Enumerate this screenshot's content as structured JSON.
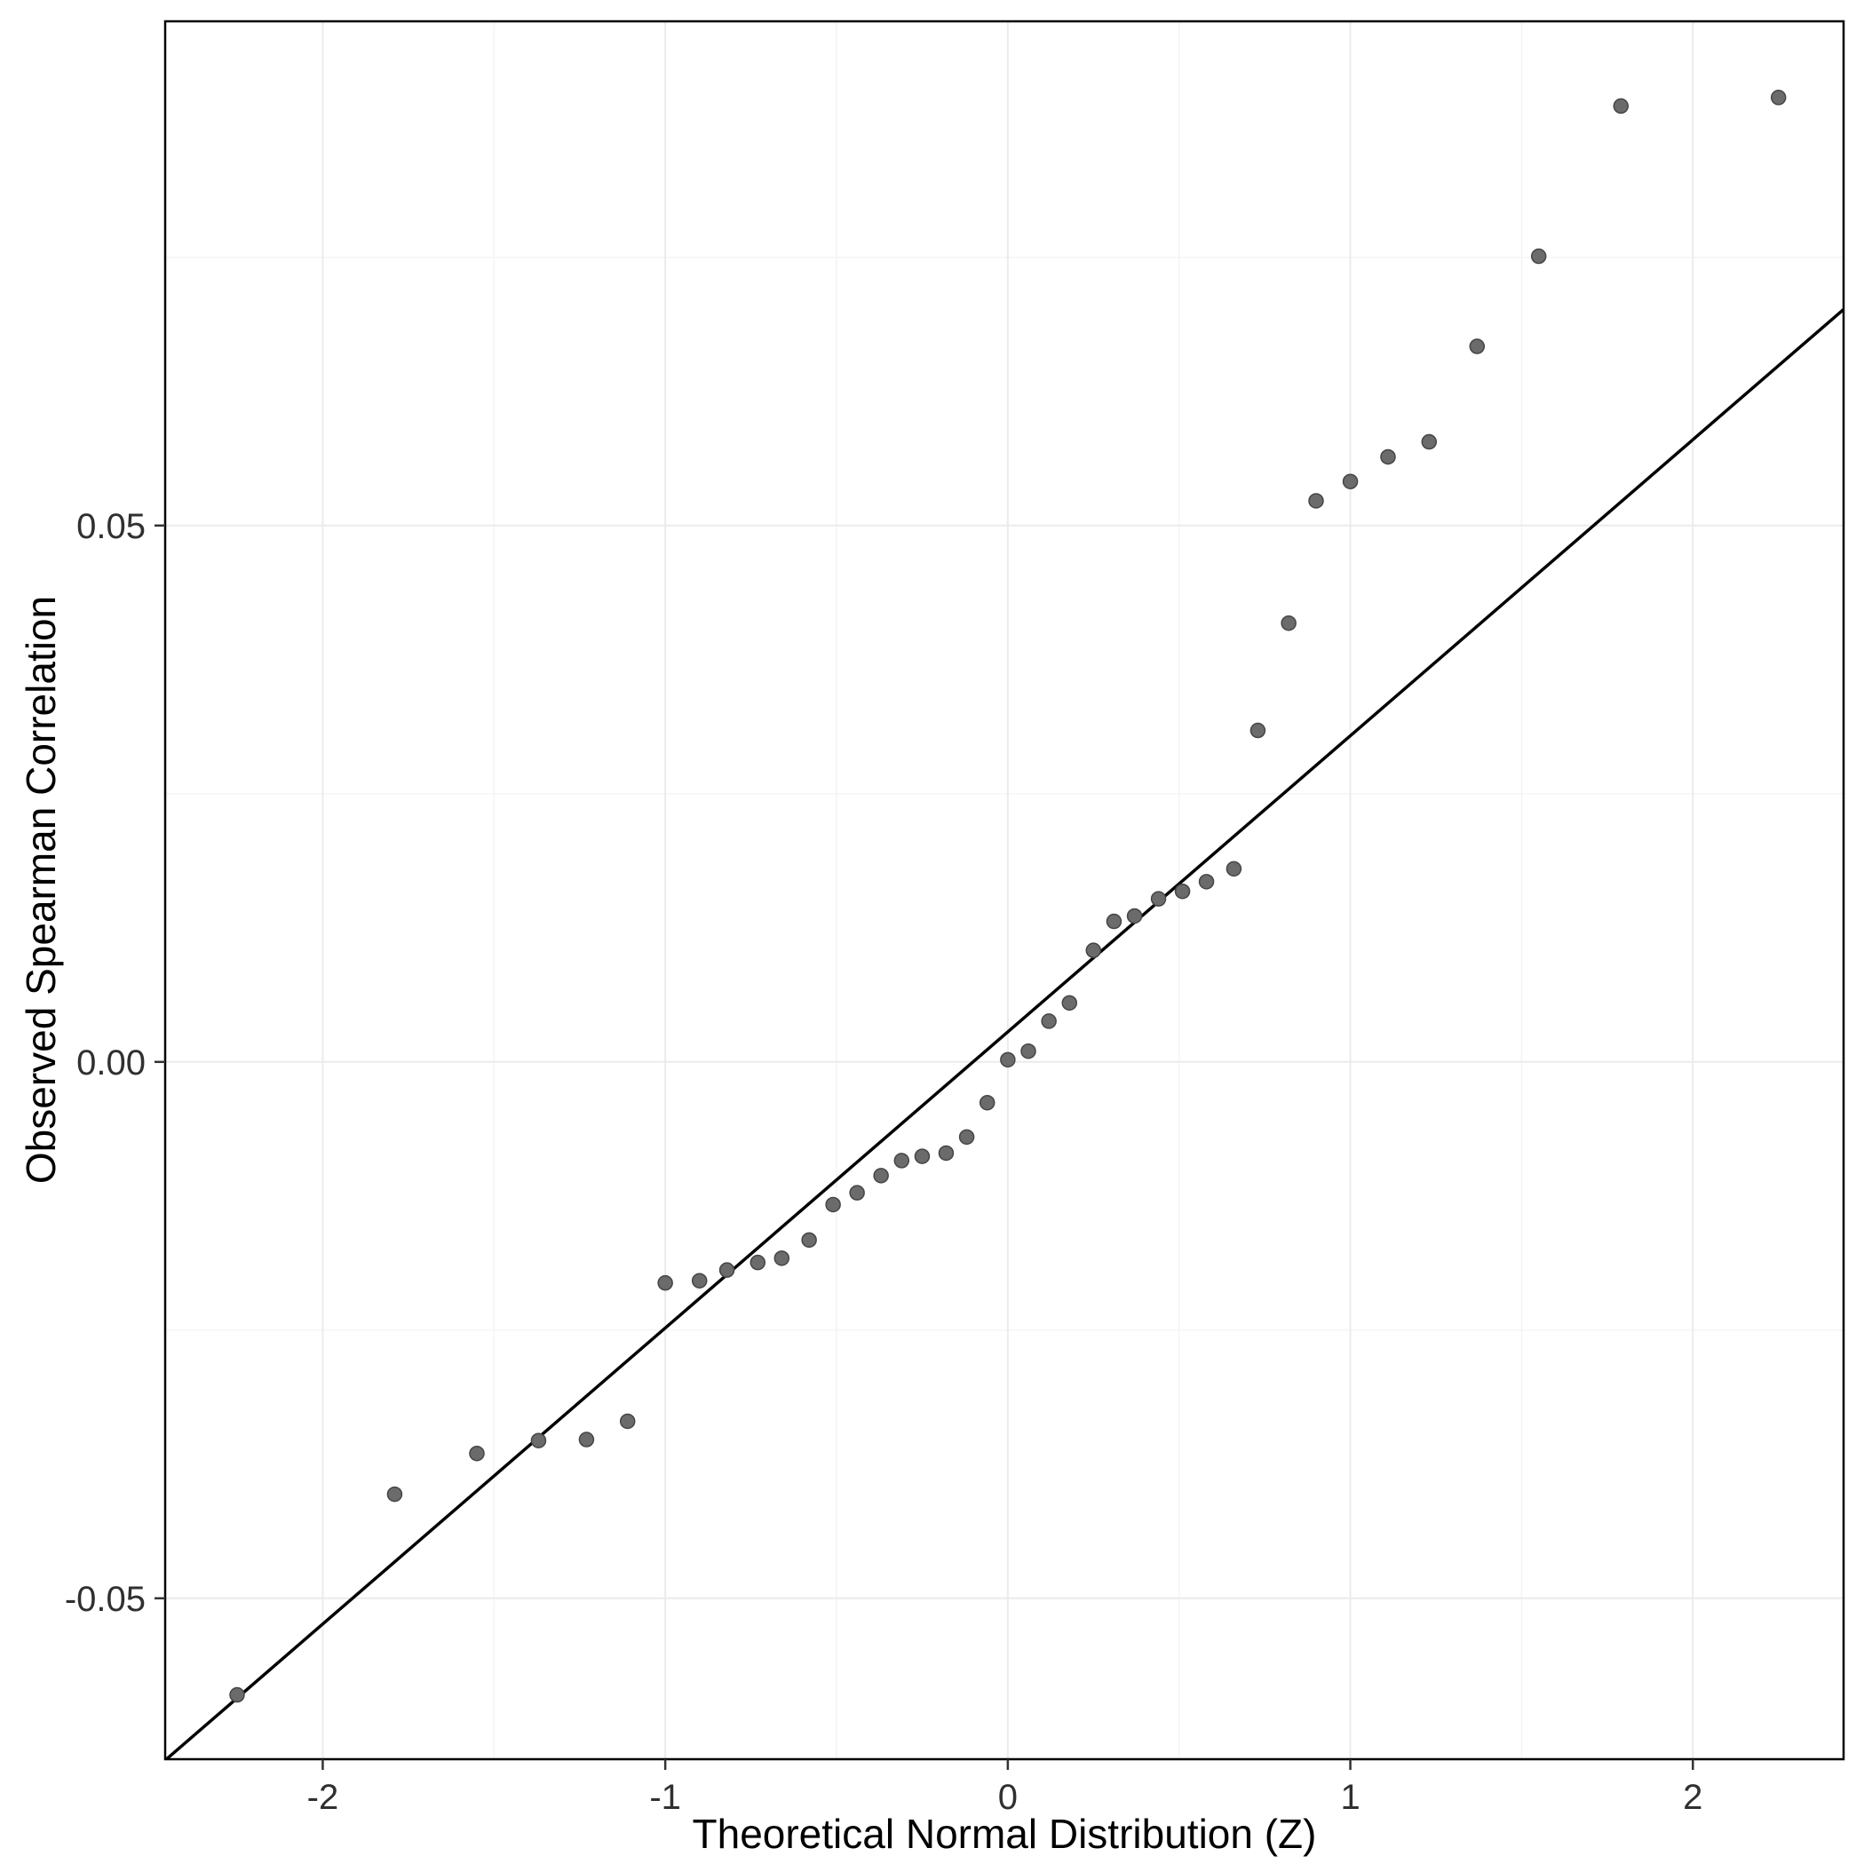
{
  "chart_data": {
    "type": "scatter",
    "variant": "qq-plot",
    "title": "",
    "xlabel": "Theoretical Normal Distribution (Z)",
    "ylabel": "Observed Spearman Correlation",
    "xlim": [
      -2.46,
      2.44
    ],
    "ylim": [
      -0.065,
      0.097
    ],
    "grid": true,
    "legend": "none",
    "x_ticks": [
      {
        "value": -2,
        "label": "-2"
      },
      {
        "value": -1,
        "label": "-1"
      },
      {
        "value": 0,
        "label": "0"
      },
      {
        "value": 1,
        "label": "1"
      },
      {
        "value": 2,
        "label": "2"
      }
    ],
    "y_ticks": [
      {
        "value": 0.05,
        "label": "0.05"
      },
      {
        "value": 0.0,
        "label": "0.00"
      },
      {
        "value": -0.05,
        "label": "-0.05"
      }
    ],
    "x_minor_gridlines": [
      -1.5,
      -0.5,
      0.5,
      1.5
    ],
    "y_minor_gridlines": [
      -0.025,
      0.025,
      0.075
    ],
    "reference_line": {
      "slope": 0.0276,
      "intercept": 0.0028
    },
    "points": [
      [
        -2.25,
        -0.059
      ],
      [
        -1.79,
        -0.0403
      ],
      [
        -1.55,
        -0.0365
      ],
      [
        -1.37,
        -0.0353
      ],
      [
        -1.23,
        -0.0352
      ],
      [
        -1.11,
        -0.0335
      ],
      [
        -1.0,
        -0.0206
      ],
      [
        -0.9,
        -0.0204
      ],
      [
        -0.82,
        -0.0194
      ],
      [
        -0.73,
        -0.0187
      ],
      [
        -0.66,
        -0.0183
      ],
      [
        -0.58,
        -0.0166
      ],
      [
        -0.51,
        -0.0133
      ],
      [
        -0.44,
        -0.0122
      ],
      [
        -0.37,
        -0.0106
      ],
      [
        -0.31,
        -0.0092
      ],
      [
        -0.25,
        -0.0088
      ],
      [
        -0.18,
        -0.0085
      ],
      [
        -0.12,
        -0.007
      ],
      [
        -0.06,
        -0.0038
      ],
      [
        0.0,
        0.0002
      ],
      [
        0.06,
        0.001
      ],
      [
        0.12,
        0.0038
      ],
      [
        0.18,
        0.0055
      ],
      [
        0.25,
        0.0104
      ],
      [
        0.31,
        0.0131
      ],
      [
        0.37,
        0.0136
      ],
      [
        0.44,
        0.0152
      ],
      [
        0.51,
        0.0159
      ],
      [
        0.58,
        0.0168
      ],
      [
        0.66,
        0.018
      ],
      [
        0.73,
        0.0309
      ],
      [
        0.82,
        0.0409
      ],
      [
        0.9,
        0.0523
      ],
      [
        1.0,
        0.0541
      ],
      [
        1.11,
        0.0564
      ],
      [
        1.23,
        0.0578
      ],
      [
        1.37,
        0.0667
      ],
      [
        1.55,
        0.0751
      ],
      [
        1.79,
        0.0891
      ],
      [
        2.25,
        0.0899
      ]
    ],
    "colors": {
      "background": "#ffffff",
      "grid_major": "#ebebeb",
      "grid_minor": "#f4f4f4",
      "panel_border": "#000000",
      "point_fill": "#6b6b6b",
      "point_stroke": "#454545",
      "line": "#000000",
      "tick_mark": "#333333",
      "tick_label": "#303030",
      "axis_title": "#000000"
    }
  }
}
